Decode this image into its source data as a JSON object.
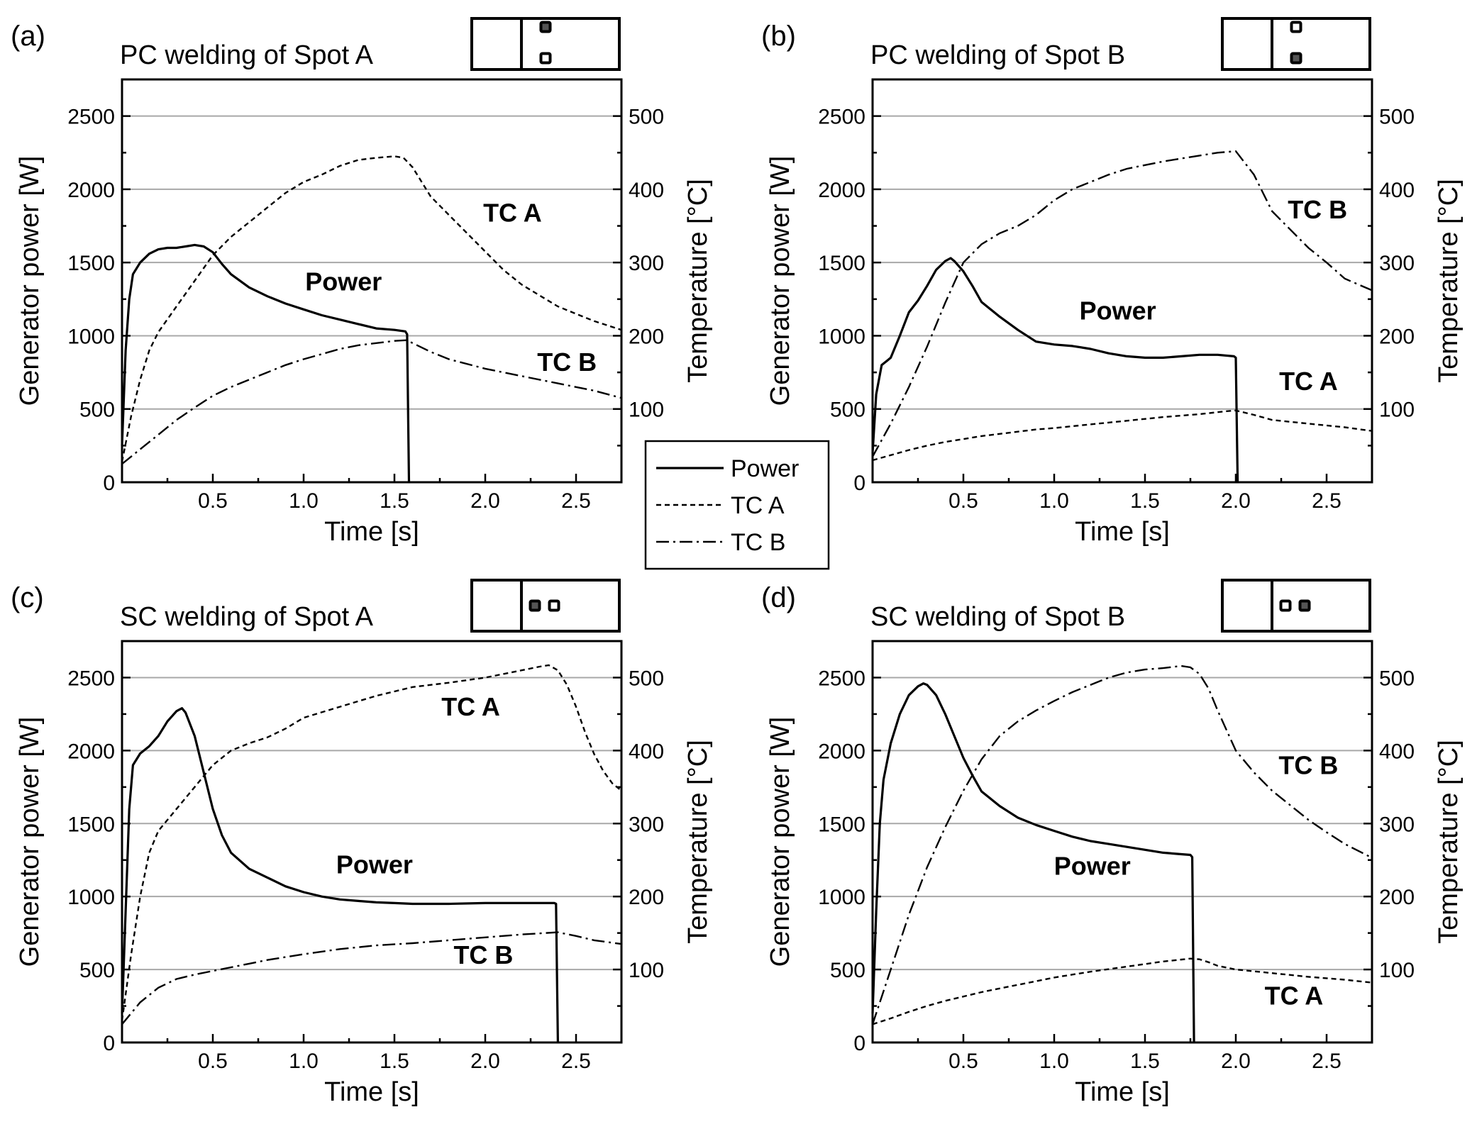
{
  "chart_data": [
    {
      "type": "line",
      "panel": "(a)",
      "title": "PC welding of Spot A",
      "xlabel": "Time [s]",
      "ylabel": "Generator power [W]",
      "ylabel_right": "Temperature [°C]",
      "xlim": [
        0,
        2.75
      ],
      "ylim": [
        0,
        2750
      ],
      "ylim_right": [
        0,
        550
      ],
      "xticks": [
        "0.5",
        "1.0",
        "1.5",
        "2.0",
        "2.5"
      ],
      "yticks": [
        "0",
        "500",
        "1000",
        "1500",
        "2000",
        "2500"
      ],
      "yticks_right": [
        "100",
        "200",
        "300",
        "400",
        "500"
      ],
      "grid": true,
      "inset": {
        "filled_spot": "top",
        "open_spot": "bottom"
      },
      "annotations": [
        {
          "text": "TC A",
          "x": 2.15,
          "y": 1780
        },
        {
          "text": "Power",
          "x": 1.22,
          "y": 1310
        },
        {
          "text": "TC B",
          "x": 2.45,
          "y": 760
        }
      ],
      "series": [
        {
          "name": "Power",
          "axis": "left",
          "style": "solid",
          "x": [
            0,
            0.02,
            0.04,
            0.06,
            0.1,
            0.15,
            0.2,
            0.25,
            0.3,
            0.35,
            0.4,
            0.45,
            0.5,
            0.55,
            0.6,
            0.7,
            0.8,
            0.9,
            1.0,
            1.1,
            1.2,
            1.3,
            1.4,
            1.5,
            1.56,
            1.57,
            1.58
          ],
          "y": [
            250,
            900,
            1250,
            1420,
            1500,
            1560,
            1590,
            1600,
            1600,
            1610,
            1620,
            1610,
            1570,
            1490,
            1420,
            1330,
            1270,
            1220,
            1180,
            1140,
            1110,
            1080,
            1050,
            1040,
            1030,
            1010,
            0
          ]
        },
        {
          "name": "TC A",
          "axis": "right",
          "style": "dashed",
          "x": [
            0,
            0.05,
            0.1,
            0.15,
            0.2,
            0.3,
            0.4,
            0.5,
            0.6,
            0.7,
            0.8,
            0.9,
            1.0,
            1.1,
            1.2,
            1.3,
            1.4,
            1.5,
            1.55,
            1.6,
            1.7,
            1.8,
            1.9,
            2.0,
            2.1,
            2.2,
            2.3,
            2.4,
            2.5,
            2.6,
            2.75
          ],
          "y": [
            28,
            90,
            140,
            180,
            205,
            240,
            275,
            310,
            335,
            355,
            375,
            395,
            410,
            420,
            432,
            440,
            443,
            445,
            443,
            430,
            390,
            365,
            340,
            315,
            290,
            270,
            255,
            240,
            230,
            220,
            208
          ]
        },
        {
          "name": "TC B",
          "axis": "right",
          "style": "dashdot",
          "x": [
            0,
            0.1,
            0.2,
            0.3,
            0.4,
            0.5,
            0.6,
            0.7,
            0.8,
            0.9,
            1.0,
            1.1,
            1.2,
            1.3,
            1.4,
            1.5,
            1.57,
            1.6,
            1.7,
            1.8,
            2.0,
            2.2,
            2.4,
            2.6,
            2.75
          ],
          "y": [
            25,
            45,
            65,
            85,
            102,
            118,
            130,
            140,
            150,
            160,
            168,
            175,
            182,
            187,
            190,
            193,
            194,
            190,
            178,
            168,
            155,
            145,
            135,
            125,
            115
          ]
        }
      ]
    },
    {
      "type": "line",
      "panel": "(b)",
      "title": "PC welding of Spot B",
      "xlabel": "Time [s]",
      "ylabel": "Generator power [W]",
      "ylabel_right": "Temperature [°C]",
      "xlim": [
        0,
        2.75
      ],
      "ylim": [
        0,
        2750
      ],
      "ylim_right": [
        0,
        550
      ],
      "xticks": [
        "0.5",
        "1.0",
        "1.5",
        "2.0",
        "2.5"
      ],
      "yticks": [
        "0",
        "500",
        "1000",
        "1500",
        "2000",
        "2500"
      ],
      "yticks_right": [
        "100",
        "200",
        "300",
        "400",
        "500"
      ],
      "grid": true,
      "inset": {
        "filled_spot": "bottom",
        "open_spot": "top"
      },
      "annotations": [
        {
          "text": "TC B",
          "x": 2.45,
          "y": 1800
        },
        {
          "text": "Power",
          "x": 1.35,
          "y": 1110
        },
        {
          "text": "TC A",
          "x": 2.4,
          "y": 630
        }
      ],
      "series": [
        {
          "name": "Power",
          "axis": "left",
          "style": "solid",
          "x": [
            0,
            0.02,
            0.05,
            0.08,
            0.1,
            0.15,
            0.2,
            0.25,
            0.3,
            0.35,
            0.4,
            0.43,
            0.45,
            0.5,
            0.55,
            0.6,
            0.7,
            0.8,
            0.9,
            1.0,
            1.1,
            1.2,
            1.3,
            1.4,
            1.5,
            1.6,
            1.7,
            1.8,
            1.9,
            1.99,
            2.0,
            2.01
          ],
          "y": [
            200,
            600,
            800,
            830,
            850,
            1000,
            1160,
            1240,
            1340,
            1450,
            1510,
            1530,
            1510,
            1440,
            1340,
            1230,
            1130,
            1040,
            960,
            940,
            930,
            910,
            880,
            860,
            850,
            850,
            860,
            870,
            870,
            860,
            850,
            0
          ]
        },
        {
          "name": "TC A",
          "axis": "right",
          "style": "dashed",
          "x": [
            0,
            0.1,
            0.2,
            0.3,
            0.4,
            0.5,
            0.6,
            0.7,
            0.8,
            0.9,
            1.0,
            1.2,
            1.4,
            1.6,
            1.8,
            1.95,
            2.0,
            2.1,
            2.2,
            2.4,
            2.6,
            2.75
          ],
          "y": [
            30,
            37,
            44,
            50,
            55,
            59,
            63,
            66,
            69,
            72,
            74,
            79,
            84,
            89,
            93,
            97,
            98,
            92,
            85,
            80,
            75,
            70
          ]
        },
        {
          "name": "TC B",
          "axis": "right",
          "style": "dashdot",
          "x": [
            0,
            0.1,
            0.2,
            0.3,
            0.4,
            0.5,
            0.6,
            0.7,
            0.8,
            0.9,
            1.0,
            1.1,
            1.2,
            1.3,
            1.4,
            1.5,
            1.6,
            1.7,
            1.8,
            1.9,
            2.0,
            2.1,
            2.2,
            2.3,
            2.4,
            2.5,
            2.6,
            2.75
          ],
          "y": [
            35,
            80,
            130,
            185,
            245,
            300,
            325,
            340,
            350,
            365,
            385,
            400,
            410,
            420,
            428,
            433,
            438,
            442,
            446,
            450,
            452,
            420,
            370,
            345,
            320,
            300,
            278,
            262
          ]
        }
      ]
    },
    {
      "type": "line",
      "panel": "(c)",
      "title": "SC welding of Spot A",
      "xlabel": "Time [s]",
      "ylabel": "Generator power [W]",
      "ylabel_right": "Temperature [°C]",
      "xlim": [
        0,
        2.75
      ],
      "ylim": [
        0,
        2750
      ],
      "ylim_right": [
        0,
        550
      ],
      "xticks": [
        "0.5",
        "1.0",
        "1.5",
        "2.0",
        "2.5"
      ],
      "yticks": [
        "0",
        "500",
        "1000",
        "1500",
        "2000",
        "2500"
      ],
      "yticks_right": [
        "100",
        "200",
        "300",
        "400",
        "500"
      ],
      "grid": true,
      "inset": {
        "filled_spot": "left",
        "open_spot": "right"
      },
      "annotations": [
        {
          "text": "TC A",
          "x": 1.92,
          "y": 2240
        },
        {
          "text": "Power",
          "x": 1.39,
          "y": 1160
        },
        {
          "text": "TC B",
          "x": 1.99,
          "y": 540
        }
      ],
      "series": [
        {
          "name": "Power",
          "axis": "left",
          "style": "solid",
          "x": [
            0,
            0.02,
            0.04,
            0.06,
            0.1,
            0.15,
            0.2,
            0.25,
            0.3,
            0.33,
            0.35,
            0.4,
            0.45,
            0.5,
            0.55,
            0.6,
            0.7,
            0.8,
            0.9,
            1.0,
            1.1,
            1.2,
            1.3,
            1.4,
            1.5,
            1.6,
            1.8,
            2.0,
            2.2,
            2.38,
            2.39,
            2.4
          ],
          "y": [
            200,
            900,
            1600,
            1900,
            1980,
            2030,
            2100,
            2200,
            2270,
            2290,
            2260,
            2100,
            1850,
            1600,
            1420,
            1300,
            1190,
            1130,
            1070,
            1030,
            1000,
            980,
            970,
            960,
            955,
            950,
            950,
            955,
            955,
            955,
            950,
            0
          ]
        },
        {
          "name": "TC A",
          "axis": "right",
          "style": "dashed",
          "x": [
            0,
            0.05,
            0.1,
            0.15,
            0.2,
            0.3,
            0.4,
            0.5,
            0.6,
            0.7,
            0.8,
            0.9,
            1.0,
            1.2,
            1.4,
            1.6,
            1.8,
            2.0,
            2.2,
            2.3,
            2.35,
            2.4,
            2.45,
            2.5,
            2.55,
            2.6,
            2.65,
            2.7,
            2.75
          ],
          "y": [
            30,
            120,
            200,
            260,
            290,
            320,
            350,
            380,
            400,
            410,
            418,
            430,
            445,
            460,
            475,
            487,
            493,
            500,
            510,
            515,
            517,
            510,
            490,
            460,
            425,
            395,
            372,
            355,
            345
          ]
        },
        {
          "name": "TC B",
          "axis": "right",
          "style": "dashdot",
          "x": [
            0,
            0.1,
            0.2,
            0.3,
            0.4,
            0.5,
            0.6,
            0.7,
            0.8,
            0.9,
            1.0,
            1.2,
            1.4,
            1.6,
            1.8,
            2.0,
            2.2,
            2.4,
            2.5,
            2.6,
            2.75
          ],
          "y": [
            25,
            55,
            75,
            87,
            93,
            98,
            103,
            108,
            113,
            117,
            121,
            128,
            133,
            136,
            140,
            144,
            148,
            151,
            146,
            140,
            135
          ]
        }
      ]
    },
    {
      "type": "line",
      "panel": "(d)",
      "title": "SC welding of Spot B",
      "xlabel": "Time [s]",
      "ylabel": "Generator power [W]",
      "ylabel_right": "Temperature [°C]",
      "xlim": [
        0,
        2.75
      ],
      "ylim": [
        0,
        2750
      ],
      "ylim_right": [
        0,
        550
      ],
      "xticks": [
        "0.5",
        "1.0",
        "1.5",
        "2.0",
        "2.5"
      ],
      "yticks": [
        "0",
        "500",
        "1000",
        "1500",
        "2000",
        "2500"
      ],
      "yticks_right": [
        "100",
        "200",
        "300",
        "400",
        "500"
      ],
      "grid": true,
      "inset": {
        "filled_spot": "right",
        "open_spot": "left"
      },
      "annotations": [
        {
          "text": "TC B",
          "x": 2.4,
          "y": 1840
        },
        {
          "text": "Power",
          "x": 1.21,
          "y": 1150
        },
        {
          "text": "TC A",
          "x": 2.32,
          "y": 260
        }
      ],
      "series": [
        {
          "name": "Power",
          "axis": "left",
          "style": "solid",
          "x": [
            0,
            0.02,
            0.04,
            0.06,
            0.1,
            0.15,
            0.2,
            0.25,
            0.28,
            0.3,
            0.35,
            0.4,
            0.45,
            0.5,
            0.55,
            0.6,
            0.7,
            0.8,
            0.9,
            1.0,
            1.1,
            1.2,
            1.3,
            1.4,
            1.5,
            1.6,
            1.7,
            1.75,
            1.76,
            1.77
          ],
          "y": [
            200,
            900,
            1500,
            1800,
            2050,
            2250,
            2380,
            2440,
            2460,
            2450,
            2380,
            2250,
            2100,
            1950,
            1830,
            1720,
            1620,
            1540,
            1490,
            1450,
            1410,
            1380,
            1360,
            1340,
            1320,
            1300,
            1290,
            1285,
            1270,
            0
          ]
        },
        {
          "name": "TC A",
          "axis": "right",
          "style": "dashed",
          "x": [
            0,
            0.1,
            0.2,
            0.3,
            0.4,
            0.5,
            0.6,
            0.7,
            0.8,
            0.9,
            1.0,
            1.2,
            1.4,
            1.6,
            1.75,
            1.8,
            1.85,
            1.9,
            2.0,
            2.2,
            2.4,
            2.6,
            2.75
          ],
          "y": [
            25,
            33,
            42,
            50,
            57,
            63,
            69,
            74,
            79,
            84,
            89,
            97,
            104,
            111,
            115,
            114,
            110,
            105,
            100,
            95,
            90,
            86,
            82
          ]
        },
        {
          "name": "TC B",
          "axis": "right",
          "style": "dashdot",
          "x": [
            0,
            0.1,
            0.2,
            0.3,
            0.4,
            0.5,
            0.6,
            0.7,
            0.8,
            0.9,
            1.0,
            1.1,
            1.2,
            1.3,
            1.4,
            1.5,
            1.6,
            1.7,
            1.75,
            1.8,
            1.85,
            1.9,
            2.0,
            2.1,
            2.2,
            2.3,
            2.4,
            2.5,
            2.6,
            2.75
          ],
          "y": [
            25,
            100,
            175,
            240,
            295,
            345,
            388,
            420,
            440,
            455,
            468,
            480,
            490,
            500,
            507,
            511,
            513,
            516,
            514,
            505,
            485,
            455,
            400,
            370,
            345,
            325,
            305,
            288,
            272,
            253
          ]
        }
      ]
    }
  ],
  "legend": {
    "entries": [
      {
        "label": "Power",
        "style": "solid"
      },
      {
        "label": "TC A",
        "style": "dashed"
      },
      {
        "label": "TC B",
        "style": "dashdot"
      }
    ]
  }
}
